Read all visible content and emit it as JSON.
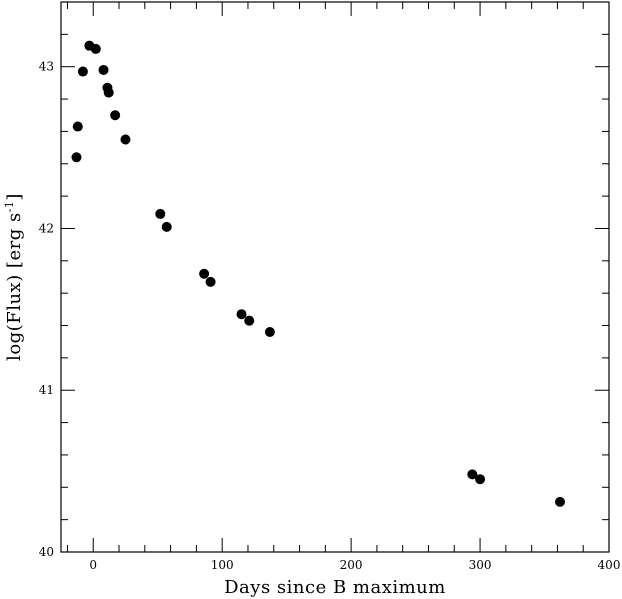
{
  "chart_data": {
    "type": "scatter",
    "title": "",
    "xlabel": "Days since B maximum",
    "ylabel": "log(Flux)  [erg s",
    "ylabel_sup": "-1",
    "ylabel_suffix": "]",
    "xlim": [
      -25,
      400
    ],
    "ylim": [
      40,
      43.4
    ],
    "x_ticks": [
      0,
      100,
      200,
      300,
      400
    ],
    "y_ticks": [
      40,
      41,
      42,
      43
    ],
    "x_tick_labels": [
      "0",
      "100",
      "200",
      "300",
      "400"
    ],
    "y_tick_labels": [
      "40",
      "41",
      "42",
      "43"
    ],
    "grid": false,
    "series": [
      {
        "points": [
          {
            "x": -13,
            "y": 42.44
          },
          {
            "x": -12,
            "y": 42.63
          },
          {
            "x": -8,
            "y": 42.97
          },
          {
            "x": -3,
            "y": 43.13
          },
          {
            "x": 2,
            "y": 43.11
          },
          {
            "x": 8,
            "y": 42.98
          },
          {
            "x": 11,
            "y": 42.87
          },
          {
            "x": 12,
            "y": 42.84
          },
          {
            "x": 17,
            "y": 42.7
          },
          {
            "x": 25,
            "y": 42.55
          },
          {
            "x": 52,
            "y": 42.09
          },
          {
            "x": 57,
            "y": 42.01
          },
          {
            "x": 86,
            "y": 41.72
          },
          {
            "x": 91,
            "y": 41.67
          },
          {
            "x": 115,
            "y": 41.47
          },
          {
            "x": 121,
            "y": 41.43
          },
          {
            "x": 137,
            "y": 41.36
          },
          {
            "x": 294,
            "y": 40.48
          },
          {
            "x": 300,
            "y": 40.45
          },
          {
            "x": 362,
            "y": 40.31
          }
        ]
      }
    ]
  }
}
